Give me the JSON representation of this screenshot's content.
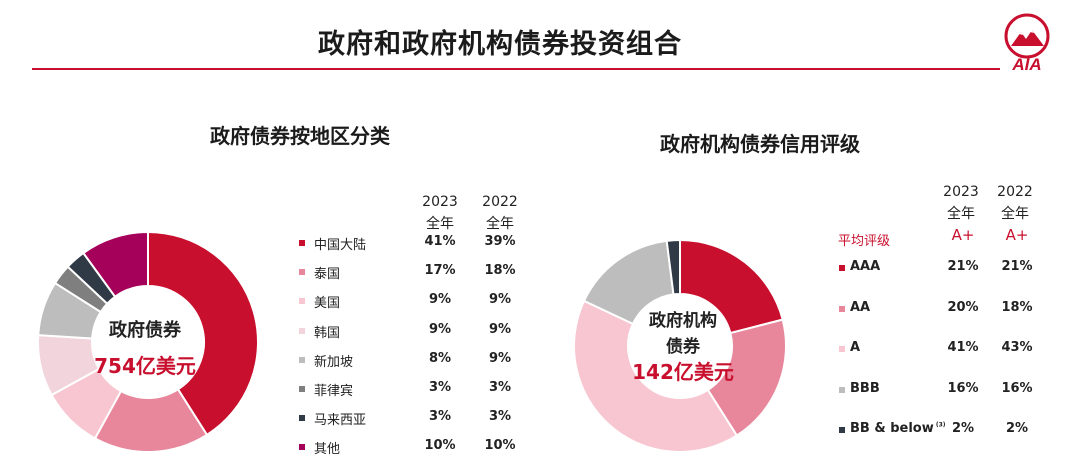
{
  "header": {
    "title": "政府和政府机构债券投资组合",
    "brand": "AIA",
    "accent_color": "#c8102e"
  },
  "left_panel": {
    "title": "政府债券按地区分类",
    "center_line1": "政府债券",
    "center_line2": "754亿美元",
    "col_2023_year": "2023",
    "col_2023_sub": "全年",
    "col_2022_year": "2022",
    "col_2022_sub": "全年"
  },
  "right_panel": {
    "title": "政府机构债券信用评级",
    "center_line1": "政府机构",
    "center_line2": "债券",
    "center_line3": "142亿美元",
    "col_2023_year": "2023",
    "col_2023_sub": "全年",
    "col_2022_year": "2022",
    "col_2022_sub": "全年",
    "avg_label": "平均评级",
    "avg_2023": "A+",
    "avg_2022": "A+",
    "footnote_mark": "(3)"
  },
  "chart_data": [
    {
      "type": "pie",
      "title": "政府债券按地区分类",
      "total_label": "754亿美元",
      "categories": [
        "中国大陆",
        "泰国",
        "美国",
        "韩国",
        "新加坡",
        "菲律宾",
        "马来西亚",
        "其他"
      ],
      "colors": [
        "#c8102e",
        "#e8879b",
        "#f7c6d0",
        "#f2d5dc",
        "#bdbdbd",
        "#7f7f7f",
        "#2f3a46",
        "#a5005a"
      ],
      "series": [
        {
          "name": "2023",
          "values": [
            41,
            17,
            9,
            9,
            8,
            3,
            3,
            10
          ],
          "labels": [
            "41%",
            "17%",
            "9%",
            "9%",
            "8%",
            "3%",
            "3%",
            "10%"
          ]
        },
        {
          "name": "2022",
          "values": [
            39,
            18,
            9,
            9,
            9,
            3,
            3,
            10
          ],
          "labels": [
            "39%",
            "18%",
            "9%",
            "9%",
            "9%",
            "3%",
            "3%",
            "10%"
          ]
        }
      ],
      "plotted_series": "2023"
    },
    {
      "type": "pie",
      "title": "政府机构债券信用评级",
      "total_label": "142亿美元",
      "categories": [
        "AAA",
        "AA",
        "A",
        "BBB",
        "BB & below"
      ],
      "colors": [
        "#c8102e",
        "#e8879b",
        "#f7c6d0",
        "#bdbdbd",
        "#2f3a46"
      ],
      "series": [
        {
          "name": "2023",
          "values": [
            21,
            20,
            41,
            16,
            2
          ],
          "labels": [
            "21%",
            "20%",
            "41%",
            "16%",
            "2%"
          ]
        },
        {
          "name": "2022",
          "values": [
            21,
            18,
            43,
            16,
            2
          ],
          "labels": [
            "21%",
            "18%",
            "43%",
            "16%",
            "2%"
          ]
        }
      ],
      "plotted_series": "2023"
    }
  ]
}
